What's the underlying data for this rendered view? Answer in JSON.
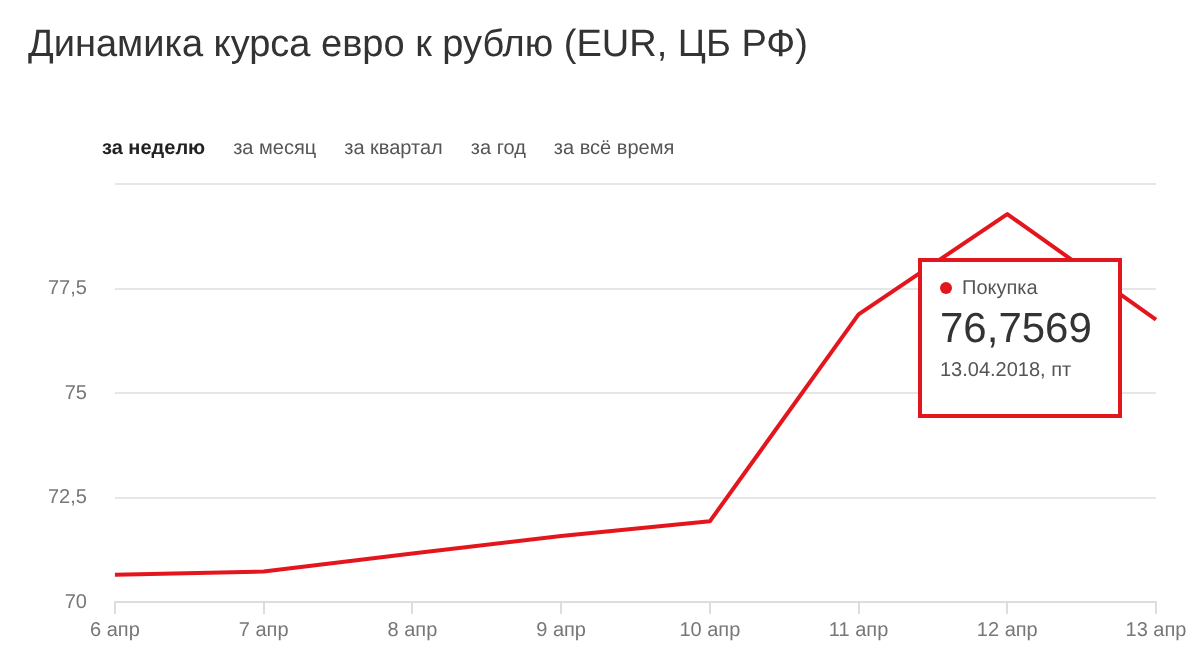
{
  "chart_data": {
    "type": "line",
    "title": "Динамика курса евро к рублю (EUR, ЦБ РФ)",
    "categories": [
      "6 апр",
      "7 апр",
      "8 апр",
      "9 апр",
      "10 апр",
      "11 апр",
      "12 апр",
      "13 апр"
    ],
    "series": [
      {
        "name": "Покупка",
        "color": "#e3161d",
        "values": [
          70.65,
          70.73,
          71.16,
          71.58,
          71.93,
          76.88,
          79.28,
          76.7569
        ]
      }
    ],
    "ylim": [
      70,
      80
    ],
    "yticks": [
      70,
      {
        "value": 72.5,
        "label": "72,5"
      },
      75,
      {
        "value": 77.5,
        "label": "77,5"
      },
      {
        "value": 80,
        "label": null
      }
    ],
    "grid": "y",
    "legend": "top right",
    "marker": "none",
    "line_style": "solid",
    "annotations": [
      "за неделю",
      "за месяц",
      "за квартал",
      "за год",
      "за всё время",
      {
        "text": "76,7569",
        "x": "13 апр",
        "y": 76.7569
      },
      "13.04.2018, пт"
    ]
  }
}
